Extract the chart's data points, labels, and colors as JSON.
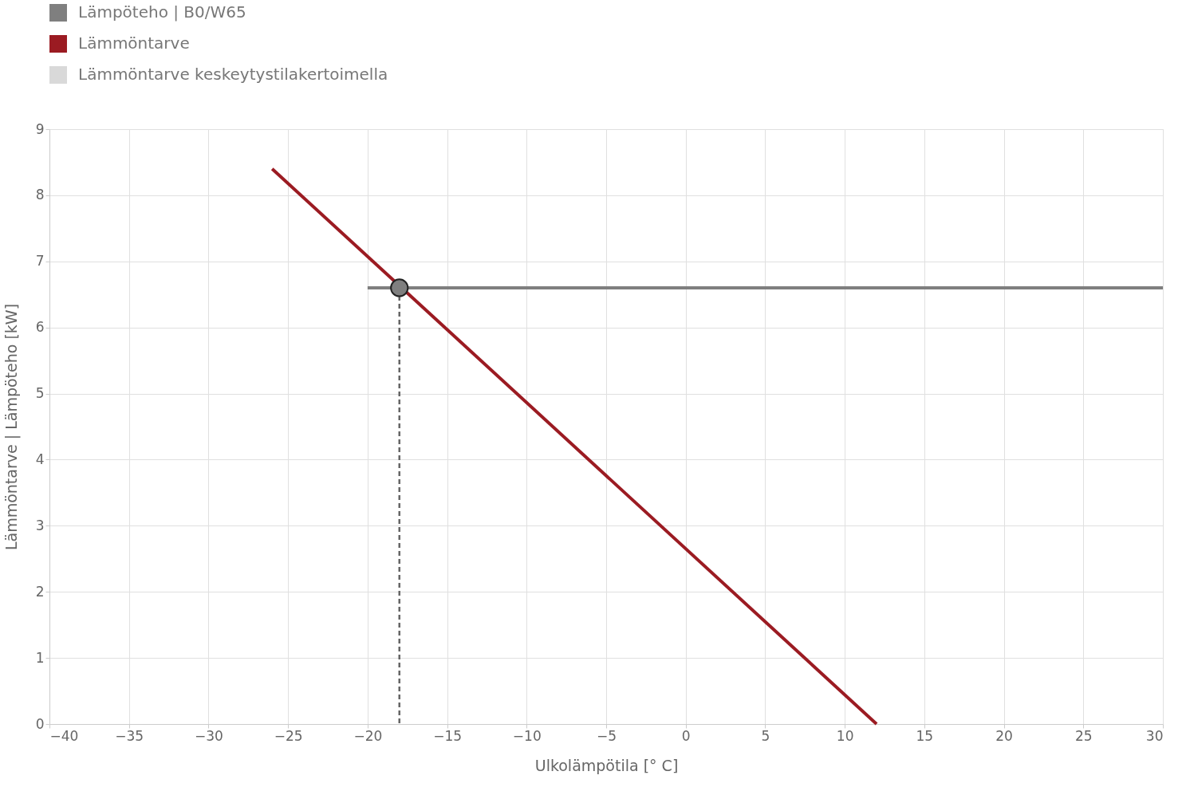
{
  "chart_data": {
    "type": "line",
    "xlabel": "Ulkolämpötila [° C]",
    "ylabel": "Lämmöntarve | Lämpöteho [kW]",
    "xlim": [
      -40,
      30
    ],
    "xticks": [
      -40,
      -35,
      -30,
      -25,
      -20,
      -15,
      -10,
      -5,
      0,
      5,
      10,
      15,
      20,
      25,
      30
    ],
    "ylim": [
      0,
      9
    ],
    "yticks": [
      0,
      1,
      2,
      3,
      4,
      5,
      6,
      7,
      8,
      9
    ],
    "grid": true,
    "legend": "top left",
    "series": [
      {
        "name": "Lämpöteho | B0/W65",
        "color": "#7f7f7f",
        "x": [
          -20,
          30
        ],
        "values": [
          6.6,
          6.6
        ],
        "line_style": "solid"
      },
      {
        "name": "Lämmöntarve",
        "color": "#9b1b22",
        "x": [
          -26,
          12
        ],
        "values": [
          8.4,
          0
        ],
        "line_style": "solid"
      },
      {
        "name": "Lämmöntarve keskeytystilakertoimella",
        "color": "#d9d9d9",
        "line_style": "solid"
      },
      {
        "type": "line",
        "color": "#666666",
        "x": [
          -18,
          -18
        ],
        "values": [
          6.6,
          0
        ],
        "line_style": "dashed"
      },
      {
        "type": "scatter",
        "color": "#7f7f7f",
        "x": [
          -18
        ],
        "values": [
          6.6
        ],
        "marker": "circle"
      }
    ]
  }
}
